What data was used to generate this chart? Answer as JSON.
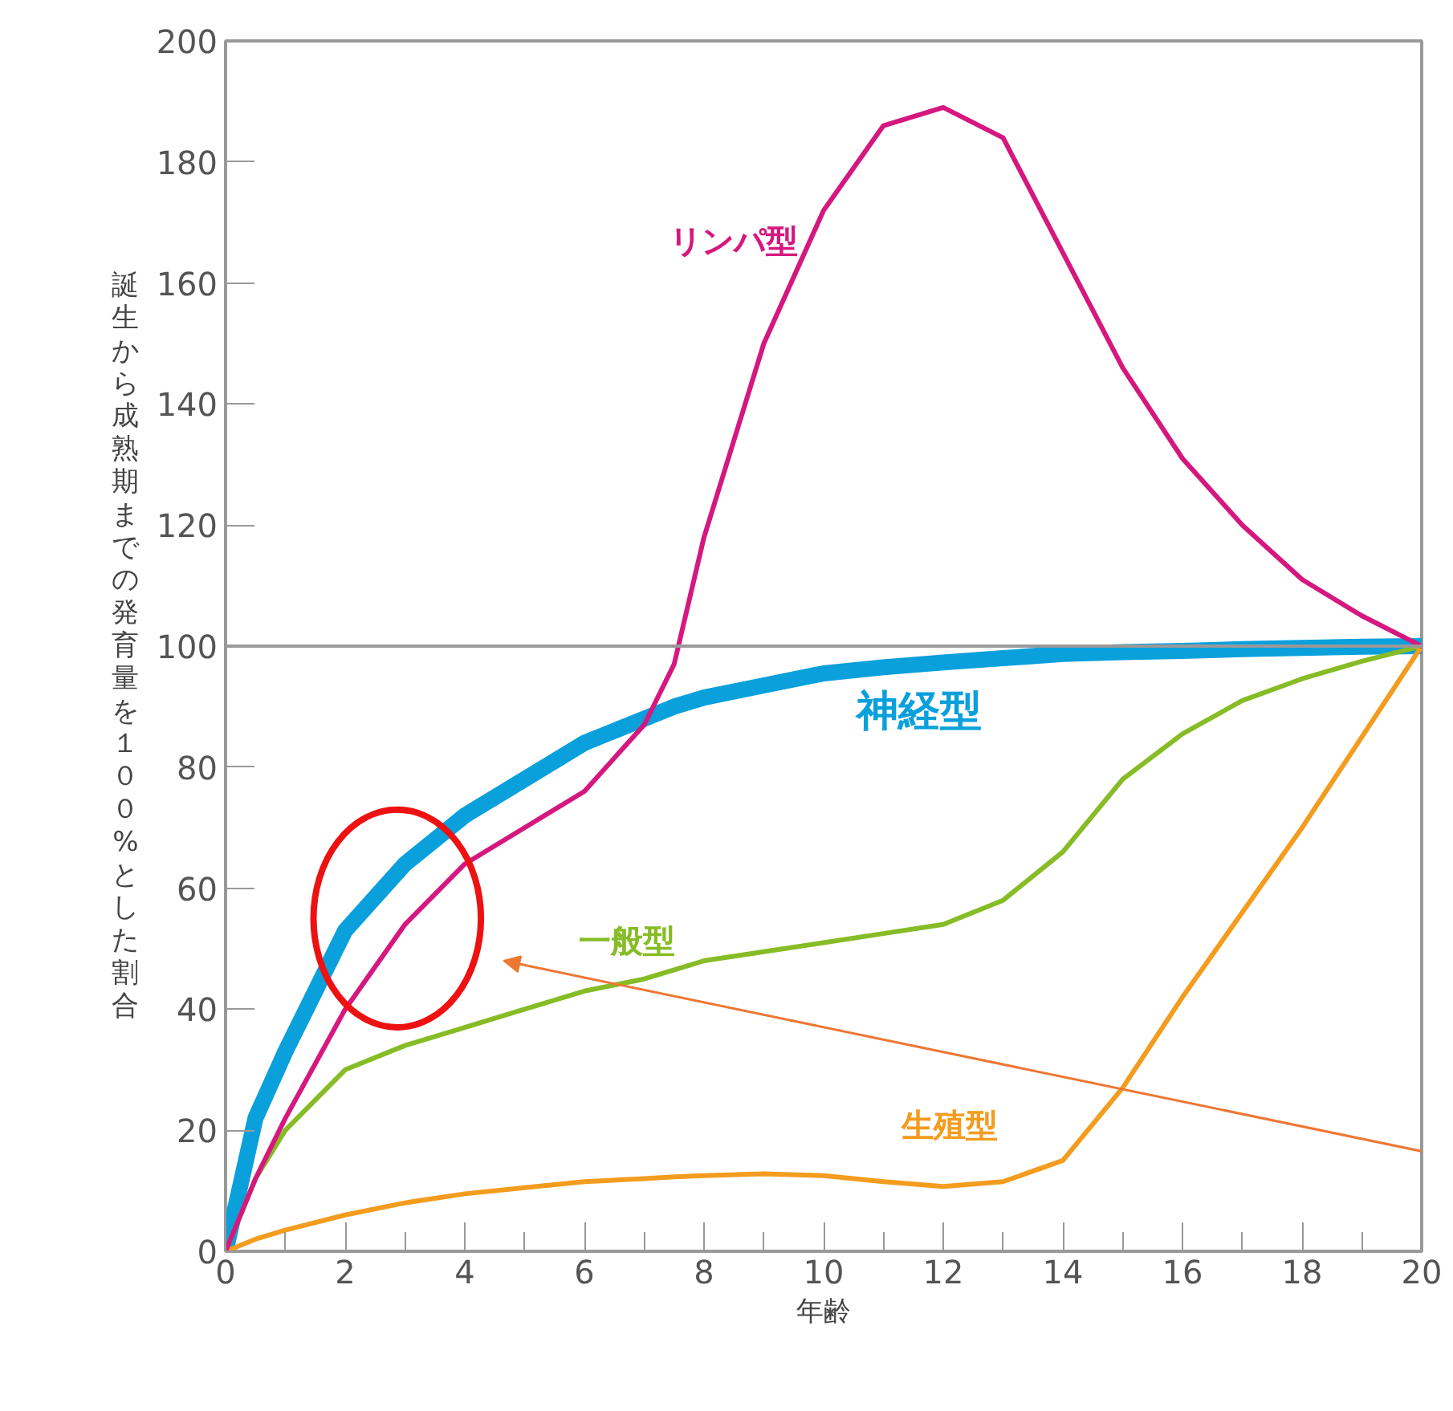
{
  "chart_data": {
    "type": "line",
    "xlabel": "年齢",
    "ylabel": "誕生から成熟期までの発育量を１００%とした割合",
    "xlim": [
      0,
      20
    ],
    "ylim": [
      0,
      200
    ],
    "xticks": [
      0,
      2,
      4,
      6,
      8,
      10,
      12,
      14,
      16,
      18,
      20
    ],
    "yticks": [
      0,
      20,
      40,
      60,
      80,
      100,
      120,
      140,
      160,
      180,
      200
    ],
    "grid": false,
    "ref_lines": [
      {
        "axis": "y",
        "value": 100,
        "color": "#999999"
      }
    ],
    "x": [
      0,
      0.5,
      1,
      2,
      3,
      4,
      5,
      6,
      7,
      7.5,
      8,
      9,
      10,
      11,
      12,
      13,
      14,
      15,
      16,
      17,
      18,
      19,
      20
    ],
    "series": [
      {
        "name": "リンパ型",
        "color": "#d5187f",
        "values": [
          0,
          12,
          22,
          40,
          54,
          64,
          70,
          76,
          87,
          97,
          118,
          150,
          172,
          186,
          189,
          184,
          165,
          146,
          131,
          120,
          111,
          105,
          100
        ]
      },
      {
        "name": "神経型",
        "color": "#0aa0dc",
        "values": [
          0,
          22,
          33,
          53,
          64,
          72,
          78,
          84,
          88,
          90,
          91.5,
          93.5,
          95.5,
          96.5,
          97.3,
          98,
          98.7,
          99,
          99.2,
          99.5,
          99.7,
          99.9,
          100
        ]
      },
      {
        "name": "一般型",
        "color": "#86bc25",
        "values": [
          0,
          12,
          20,
          30,
          34,
          37,
          40,
          43,
          45,
          46.5,
          48,
          49.5,
          51,
          52.5,
          54,
          58,
          66,
          78,
          85.5,
          91,
          94.6,
          97.5,
          100
        ]
      },
      {
        "name": "生殖型",
        "color": "#f39c1e",
        "values": [
          0,
          2,
          3.5,
          6,
          8,
          9.5,
          10.5,
          11.5,
          12,
          12.3,
          12.5,
          12.8,
          12.5,
          11.5,
          10.7,
          11.5,
          15,
          27,
          42,
          56,
          70,
          85,
          100
        ]
      }
    ]
  }
}
